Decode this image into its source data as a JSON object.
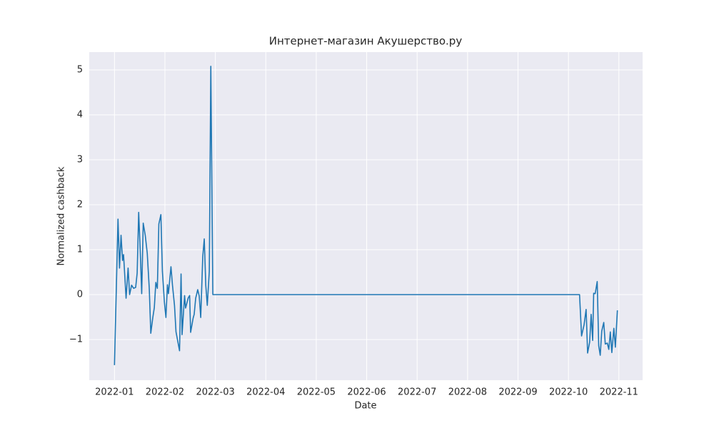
{
  "chart_data": {
    "type": "line",
    "title": "Интернет-магазин Акушерство.ру",
    "xlabel": "Date",
    "ylabel": "Normalized cashback",
    "color": "#1f77b4",
    "grid": true,
    "x": [
      0,
      0.07,
      0.1,
      0.13,
      0.16,
      0.18,
      0.23,
      0.27,
      0.3,
      0.34,
      0.38,
      0.42,
      0.45,
      0.48,
      0.51,
      0.54,
      0.57,
      0.61,
      0.65,
      0.69,
      0.72,
      0.76,
      0.79,
      0.82,
      0.85,
      0.88,
      0.92,
      0.95,
      0.99,
      1.02,
      1.05,
      1.07,
      1.12,
      1.15,
      1.19,
      1.22,
      1.29,
      1.32,
      1.34,
      1.39,
      1.41,
      1.46,
      1.49,
      1.51,
      1.56,
      1.58,
      1.61,
      1.65,
      1.68,
      1.71,
      1.75,
      1.78,
      1.81,
      1.84,
      1.88,
      1.91,
      1.95,
      9.22,
      9.26,
      9.31,
      9.35,
      9.38,
      9.42,
      9.45,
      9.48,
      9.5,
      9.53,
      9.57,
      9.6,
      9.63,
      9.66,
      9.7,
      9.73,
      9.77,
      9.8,
      9.83,
      9.86,
      9.9,
      9.93,
      9.97
    ],
    "values": [
      -1.57,
      1.68,
      0.59,
      1.32,
      0.76,
      0.89,
      -0.08,
      0.59,
      0.0,
      0.21,
      0.14,
      0.16,
      0.48,
      1.83,
      1.0,
      0.02,
      1.59,
      1.32,
      0.92,
      0.13,
      -0.86,
      -0.51,
      -0.29,
      0.27,
      0.14,
      1.57,
      1.78,
      0.52,
      -0.17,
      -0.51,
      0.22,
      0.02,
      0.62,
      0.21,
      -0.24,
      -0.83,
      -1.25,
      0.46,
      -0.89,
      -0.02,
      -0.3,
      -0.08,
      -0.02,
      -0.84,
      -0.52,
      -0.44,
      -0.08,
      0.11,
      -0.03,
      -0.51,
      0.84,
      1.24,
      0.21,
      -0.24,
      0.52,
      5.08,
      0,
      0,
      -0.92,
      -0.67,
      -0.33,
      -1.3,
      -1.06,
      -0.44,
      -1.02,
      0.03,
      0.02,
      0.29,
      -1.14,
      -1.35,
      -0.81,
      -0.62,
      -1.1,
      -1.08,
      -1.22,
      -0.83,
      -1.29,
      -0.75,
      -1.17,
      -0.35
    ],
    "xlim": [
      -0.5,
      10.47
    ],
    "ylim": [
      -1.905,
      5.397
    ],
    "xticks": [
      {
        "value": 0,
        "label": "2022-01"
      },
      {
        "value": 1,
        "label": "2022-02"
      },
      {
        "value": 2,
        "label": "2022-03"
      },
      {
        "value": 3,
        "label": "2022-04"
      },
      {
        "value": 4,
        "label": "2022-05"
      },
      {
        "value": 5,
        "label": "2022-06"
      },
      {
        "value": 6,
        "label": "2022-07"
      },
      {
        "value": 7,
        "label": "2022-08"
      },
      {
        "value": 8,
        "label": "2022-09"
      },
      {
        "value": 9,
        "label": "2022-10"
      },
      {
        "value": 10,
        "label": "2022-11"
      }
    ],
    "yticks": [
      {
        "value": -1,
        "label": "−1"
      },
      0,
      1,
      2,
      3,
      4,
      5
    ]
  }
}
